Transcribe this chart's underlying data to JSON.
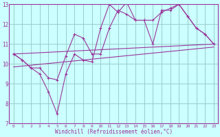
{
  "xlabel": "Windchill (Refroidissement éolien,°C)",
  "bg_color": "#ccffff",
  "line_color": "#993399",
  "grid_color": "#99cccc",
  "xlim": [
    -0.5,
    23.5
  ],
  "ylim": [
    7,
    13
  ],
  "yticks": [
    7,
    8,
    9,
    10,
    11,
    12,
    13
  ],
  "xticks": [
    0,
    1,
    2,
    3,
    4,
    5,
    6,
    7,
    8,
    9,
    10,
    11,
    12,
    13,
    14,
    15,
    16,
    17,
    18,
    19,
    20,
    21,
    22,
    23
  ],
  "series1_x": [
    0,
    1,
    2,
    3,
    4,
    5,
    6,
    7,
    8,
    9,
    10,
    11,
    12,
    13,
    14,
    15,
    16,
    17,
    18,
    19,
    20,
    21,
    22,
    23
  ],
  "series1_y": [
    10.5,
    10.2,
    9.8,
    9.5,
    8.6,
    7.5,
    9.5,
    10.5,
    10.2,
    10.1,
    11.8,
    13.0,
    12.6,
    13.1,
    12.2,
    12.2,
    11.0,
    12.7,
    12.7,
    13.0,
    12.4,
    11.8,
    11.5,
    11.0
  ],
  "series2_x": [
    0,
    1,
    2,
    3,
    4,
    5,
    6,
    7,
    8,
    9,
    10,
    11,
    12,
    13,
    14,
    15,
    16,
    17,
    18,
    19,
    20,
    21,
    22,
    23
  ],
  "series2_y": [
    10.5,
    10.2,
    9.8,
    9.8,
    9.3,
    9.2,
    10.4,
    11.5,
    11.3,
    10.5,
    10.5,
    11.8,
    12.7,
    12.5,
    12.2,
    12.2,
    12.2,
    12.6,
    12.8,
    13.0,
    12.4,
    11.8,
    11.5,
    11.0
  ],
  "trend1_x": [
    0,
    23
  ],
  "trend1_y": [
    10.5,
    11.0
  ],
  "trend2_x": [
    0,
    23
  ],
  "trend2_y": [
    9.85,
    10.85
  ]
}
